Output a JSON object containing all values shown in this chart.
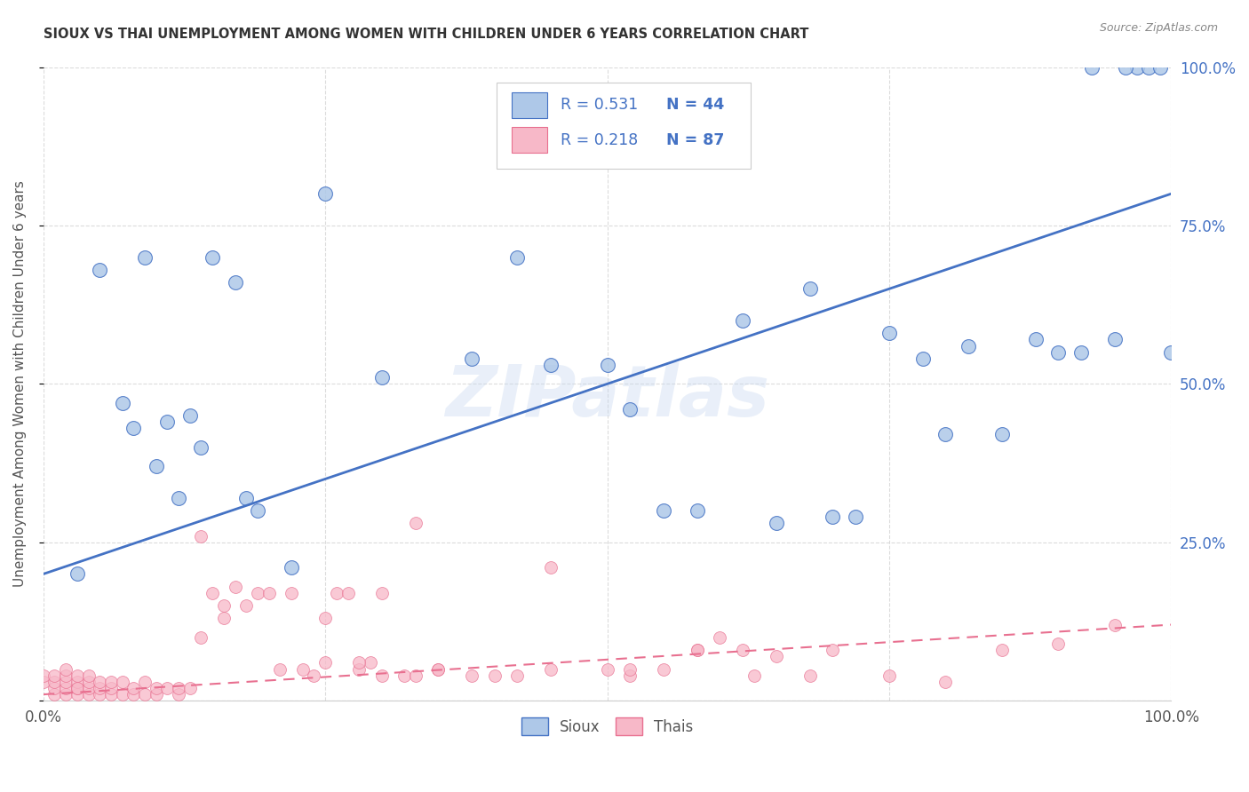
{
  "title": "SIOUX VS THAI UNEMPLOYMENT AMONG WOMEN WITH CHILDREN UNDER 6 YEARS CORRELATION CHART",
  "source": "Source: ZipAtlas.com",
  "ylabel": "Unemployment Among Women with Children Under 6 years",
  "xlim": [
    0,
    1
  ],
  "ylim": [
    0,
    1
  ],
  "xticks": [
    0,
    0.25,
    0.5,
    0.75,
    1.0
  ],
  "xticklabels": [
    "0.0%",
    "",
    "",
    "",
    "100.0%"
  ],
  "yticks": [
    0,
    0.25,
    0.5,
    0.75,
    1.0
  ],
  "yticklabels": [
    "",
    "25.0%",
    "50.0%",
    "75.0%",
    "100.0%"
  ],
  "sioux_color": "#aec8e8",
  "thais_color": "#f7b8c8",
  "sioux_line_color": "#4472c4",
  "thais_line_color": "#e87090",
  "legend_text_color": "#4472c4",
  "sioux_R": "0.531",
  "sioux_N": "44",
  "thais_R": "0.218",
  "thais_N": "87",
  "watermark": "ZIPatlas",
  "background_color": "#ffffff",
  "grid_color": "#cccccc",
  "sioux_x": [
    0.03,
    0.05,
    0.07,
    0.08,
    0.09,
    0.1,
    0.11,
    0.12,
    0.13,
    0.14,
    0.15,
    0.17,
    0.18,
    0.19,
    0.22,
    0.25,
    0.3,
    0.38,
    0.42,
    0.45,
    0.5,
    0.52,
    0.55,
    0.58,
    0.62,
    0.65,
    0.68,
    0.7,
    0.72,
    0.75,
    0.78,
    0.8,
    0.82,
    0.85,
    0.88,
    0.9,
    0.92,
    0.95,
    0.97,
    0.98,
    0.99,
    1.0,
    0.93,
    0.96
  ],
  "sioux_y": [
    0.2,
    0.68,
    0.47,
    0.43,
    0.7,
    0.37,
    0.44,
    0.32,
    0.45,
    0.4,
    0.7,
    0.66,
    0.32,
    0.3,
    0.21,
    0.8,
    0.51,
    0.54,
    0.7,
    0.53,
    0.53,
    0.46,
    0.3,
    0.3,
    0.6,
    0.28,
    0.65,
    0.29,
    0.29,
    0.58,
    0.54,
    0.42,
    0.56,
    0.42,
    0.57,
    0.55,
    0.55,
    0.57,
    1.0,
    1.0,
    1.0,
    0.55,
    1.0,
    1.0
  ],
  "thais_x": [
    0.0,
    0.0,
    0.01,
    0.01,
    0.01,
    0.01,
    0.02,
    0.02,
    0.02,
    0.02,
    0.02,
    0.03,
    0.03,
    0.03,
    0.03,
    0.03,
    0.04,
    0.04,
    0.04,
    0.04,
    0.05,
    0.05,
    0.05,
    0.06,
    0.06,
    0.06,
    0.07,
    0.07,
    0.08,
    0.08,
    0.09,
    0.09,
    0.1,
    0.1,
    0.11,
    0.12,
    0.12,
    0.13,
    0.14,
    0.15,
    0.16,
    0.17,
    0.18,
    0.19,
    0.2,
    0.21,
    0.22,
    0.23,
    0.24,
    0.25,
    0.26,
    0.27,
    0.28,
    0.29,
    0.3,
    0.32,
    0.33,
    0.35,
    0.4,
    0.45,
    0.5,
    0.52,
    0.55,
    0.58,
    0.6,
    0.63,
    0.65,
    0.7,
    0.75,
    0.8,
    0.85,
    0.9,
    0.95,
    0.14,
    0.16,
    0.25,
    0.28,
    0.3,
    0.33,
    0.35,
    0.38,
    0.42,
    0.45,
    0.52,
    0.58,
    0.62,
    0.68
  ],
  "thais_y": [
    0.03,
    0.04,
    0.01,
    0.02,
    0.03,
    0.04,
    0.01,
    0.02,
    0.03,
    0.04,
    0.05,
    0.01,
    0.02,
    0.03,
    0.04,
    0.02,
    0.01,
    0.02,
    0.03,
    0.04,
    0.01,
    0.02,
    0.03,
    0.01,
    0.02,
    0.03,
    0.01,
    0.03,
    0.01,
    0.02,
    0.01,
    0.03,
    0.01,
    0.02,
    0.02,
    0.01,
    0.02,
    0.02,
    0.26,
    0.17,
    0.15,
    0.18,
    0.15,
    0.17,
    0.17,
    0.05,
    0.17,
    0.05,
    0.04,
    0.06,
    0.17,
    0.17,
    0.05,
    0.06,
    0.17,
    0.04,
    0.28,
    0.05,
    0.04,
    0.21,
    0.05,
    0.04,
    0.05,
    0.08,
    0.1,
    0.04,
    0.07,
    0.08,
    0.04,
    0.03,
    0.08,
    0.09,
    0.12,
    0.1,
    0.13,
    0.13,
    0.06,
    0.04,
    0.04,
    0.05,
    0.04,
    0.04,
    0.05,
    0.05,
    0.08,
    0.08,
    0.04
  ],
  "sioux_regression": [
    0.2,
    0.8
  ],
  "thais_regression": [
    0.01,
    0.12
  ]
}
